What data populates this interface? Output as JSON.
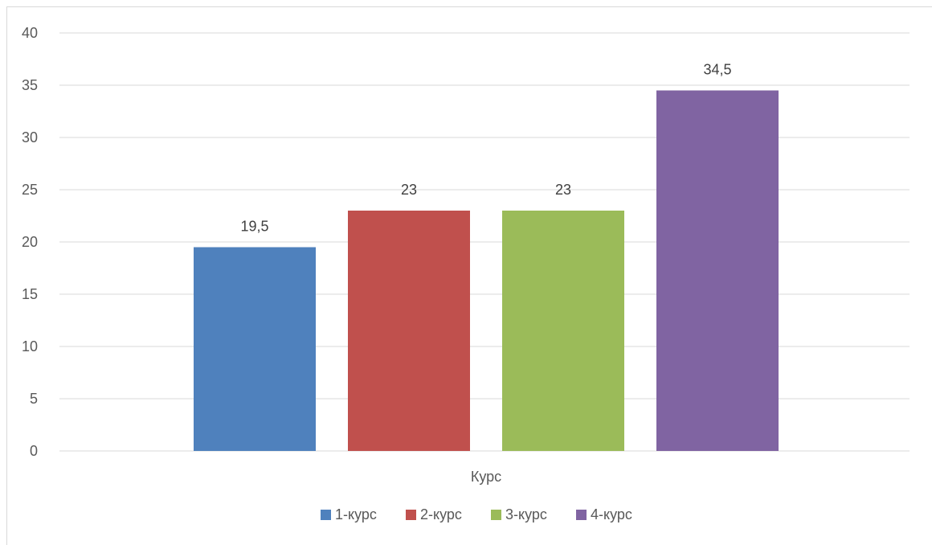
{
  "chart_data": {
    "type": "bar",
    "categories": [
      "Курс"
    ],
    "series": [
      {
        "name": "1-курс",
        "color": "#4f81bd",
        "values": [
          19.5
        ],
        "label": "19,5"
      },
      {
        "name": "2-курс",
        "color": "#c0504d",
        "values": [
          23
        ],
        "label": "23"
      },
      {
        "name": "3-курс",
        "color": "#9bbb59",
        "values": [
          23
        ],
        "label": "23"
      },
      {
        "name": "4-курс",
        "color": "#8064a2",
        "values": [
          34.5
        ],
        "label": "34,5"
      }
    ],
    "ylim": [
      0,
      40
    ],
    "yticks": [
      0,
      5,
      10,
      15,
      20,
      25,
      30,
      35,
      40
    ],
    "grid": true,
    "legend_position": "bottom",
    "data_labels": true
  }
}
